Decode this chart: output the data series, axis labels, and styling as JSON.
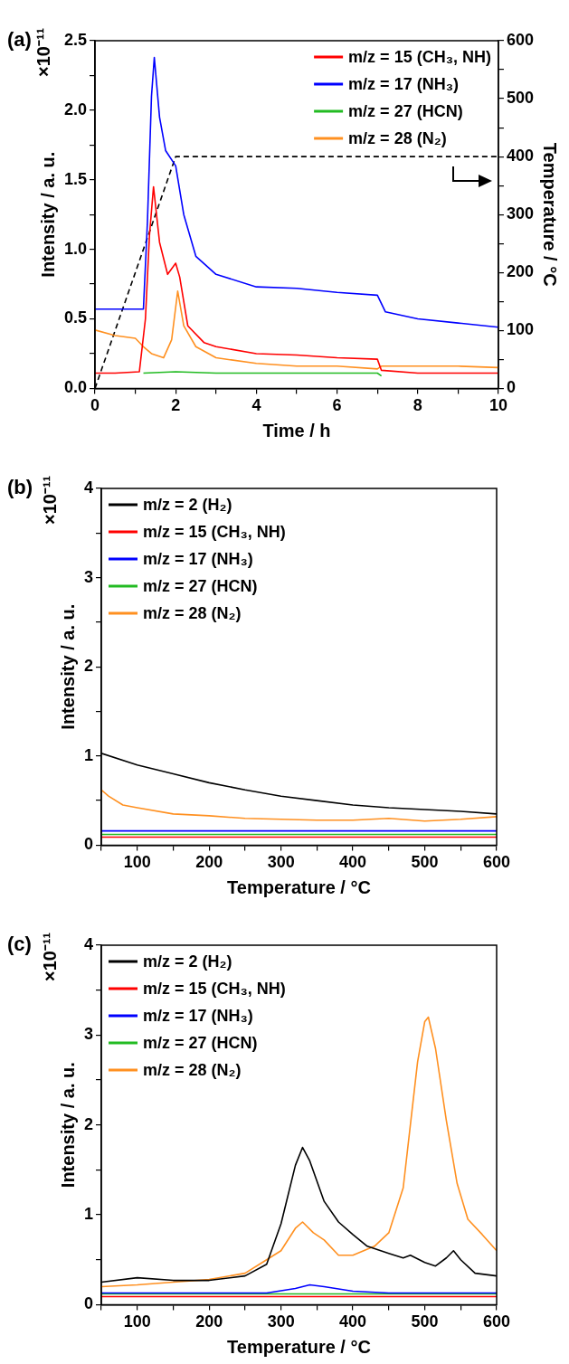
{
  "chart_data": [
    {
      "type": "line",
      "title": "(a)",
      "xlabel": "Time / h",
      "ylabel": "Intensity / a. u.",
      "y2label": "Temperature / °C",
      "annotations": [
        "×10⁻¹¹"
      ],
      "legend": "top right",
      "marker": "none",
      "xlim": [
        0,
        10
      ],
      "xticks": [
        0,
        {
          "value": 1,
          "label": null
        },
        2,
        {
          "value": 3,
          "label": null
        },
        4,
        {
          "value": 5,
          "label": null
        },
        6,
        {
          "value": 7,
          "label": null
        },
        8,
        {
          "value": 9,
          "label": null
        },
        10
      ],
      "ylim": [
        0,
        2.5
      ],
      "yticks": [
        {
          "value": 0,
          "label": "0.0"
        },
        {
          "value": 0.25,
          "label": null
        },
        {
          "value": 0.5,
          "label": "0.5"
        },
        {
          "value": 0.75,
          "label": null
        },
        {
          "value": 1,
          "label": "1.0"
        },
        {
          "value": 1.25,
          "label": null
        },
        {
          "value": 1.5,
          "label": "1.5"
        },
        {
          "value": 1.75,
          "label": null
        },
        {
          "value": 2,
          "label": "2.0"
        },
        {
          "value": 2.25,
          "label": null
        },
        {
          "value": 2.5,
          "label": "2.5"
        }
      ],
      "y2lim": [
        0,
        600
      ],
      "y2ticks": [
        0,
        {
          "value": 50,
          "label": null
        },
        100,
        {
          "value": 150,
          "label": null
        },
        200,
        {
          "value": 250,
          "label": null
        },
        300,
        {
          "value": 350,
          "label": null
        },
        400,
        {
          "value": 450,
          "label": null
        },
        500,
        {
          "value": 550,
          "label": null
        },
        600
      ],
      "series": [
        {
          "name": "m/z = 15 (CH₃, NH)",
          "color": "#ff0000",
          "x": [
            0,
            0.5,
            1.1,
            1.25,
            1.35,
            1.45,
            1.6,
            1.8,
            2.0,
            2.1,
            2.3,
            2.7,
            3,
            4,
            5,
            6,
            7,
            7.1,
            8,
            9,
            10
          ],
          "values": [
            0.11,
            0.11,
            0.12,
            0.5,
            1.1,
            1.45,
            1.05,
            0.82,
            0.9,
            0.8,
            0.45,
            0.33,
            0.3,
            0.25,
            0.24,
            0.22,
            0.21,
            0.13,
            0.11,
            0.11,
            0.11
          ]
        },
        {
          "name": "m/z = 17 (NH₃)",
          "color": "#0000ff",
          "x": [
            0,
            0.5,
            1.2,
            1.3,
            1.4,
            1.47,
            1.6,
            1.75,
            2.0,
            2.2,
            2.5,
            3,
            4,
            5,
            6,
            7,
            7.2,
            8,
            9,
            10
          ],
          "values": [
            0.57,
            0.57,
            0.57,
            1.2,
            2.1,
            2.38,
            1.95,
            1.71,
            1.6,
            1.25,
            0.95,
            0.82,
            0.73,
            0.72,
            0.69,
            0.67,
            0.55,
            0.5,
            0.47,
            0.44
          ]
        },
        {
          "name": "m/z = 27 (HCN)",
          "color": "#22bb22",
          "x": [
            1.2,
            2,
            3,
            4,
            5,
            6,
            7,
            7.1
          ],
          "values": [
            0.11,
            0.12,
            0.11,
            0.11,
            0.11,
            0.11,
            0.11,
            0.09
          ]
        },
        {
          "name": "m/z = 28 (N₂)",
          "color": "#ff9020",
          "x": [
            0,
            0.5,
            1.0,
            1.2,
            1.4,
            1.7,
            1.9,
            2.05,
            2.2,
            2.5,
            3,
            4,
            5,
            6,
            7,
            7.1,
            8,
            9,
            10
          ],
          "values": [
            0.42,
            0.38,
            0.36,
            0.3,
            0.25,
            0.22,
            0.35,
            0.7,
            0.45,
            0.3,
            0.22,
            0.18,
            0.16,
            0.16,
            0.14,
            0.16,
            0.16,
            0.16,
            0.15
          ]
        },
        {
          "color": "#000000",
          "axis": "y2",
          "line_style": "dashed",
          "x": [
            0,
            2,
            10
          ],
          "values": [
            0,
            400,
            400
          ]
        }
      ]
    },
    {
      "type": "line",
      "title": "(b)",
      "xlabel": "Temperature / °C",
      "ylabel": "Intensity / a. u.",
      "annotations": [
        "×10⁻¹¹"
      ],
      "legend": "top left",
      "marker": "none",
      "xlim": [
        50,
        600
      ],
      "xticks": [
        {
          "value": 50,
          "label": null
        },
        100,
        {
          "value": 150,
          "label": null
        },
        200,
        {
          "value": 250,
          "label": null
        },
        300,
        {
          "value": 350,
          "label": null
        },
        400,
        {
          "value": 450,
          "label": null
        },
        500,
        {
          "value": 550,
          "label": null
        },
        600
      ],
      "ylim": [
        0,
        4
      ],
      "yticks": [
        0,
        {
          "value": 0.5,
          "label": null
        },
        1,
        {
          "value": 1.5,
          "label": null
        },
        2,
        {
          "value": 2.5,
          "label": null
        },
        3,
        {
          "value": 3.5,
          "label": null
        },
        4
      ],
      "series": [
        {
          "name": "m/z = 2 (H₂)",
          "color": "#000000",
          "x": [
            50,
            100,
            150,
            200,
            250,
            300,
            350,
            400,
            450,
            500,
            550,
            600
          ],
          "values": [
            1.03,
            0.9,
            0.8,
            0.7,
            0.62,
            0.55,
            0.5,
            0.45,
            0.42,
            0.4,
            0.38,
            0.35
          ]
        },
        {
          "name": "m/z = 15 (CH₃, NH)",
          "color": "#ff0000",
          "x": [
            50,
            200,
            400,
            600
          ],
          "values": [
            0.09,
            0.09,
            0.09,
            0.09
          ]
        },
        {
          "name": "m/z = 17 (NH₃)",
          "color": "#0000ff",
          "x": [
            50,
            200,
            400,
            600
          ],
          "values": [
            0.16,
            0.16,
            0.16,
            0.16
          ]
        },
        {
          "name": "m/z = 27 (HCN)",
          "color": "#22bb22",
          "x": [
            50,
            200,
            400,
            600
          ],
          "values": [
            0.12,
            0.12,
            0.12,
            0.12
          ]
        },
        {
          "name": "m/z = 28 (N₂)",
          "color": "#ff9020",
          "x": [
            50,
            60,
            80,
            100,
            150,
            200,
            250,
            300,
            350,
            400,
            450,
            500,
            550,
            600
          ],
          "values": [
            0.62,
            0.55,
            0.45,
            0.42,
            0.35,
            0.33,
            0.3,
            0.29,
            0.28,
            0.28,
            0.3,
            0.27,
            0.29,
            0.32
          ]
        }
      ]
    },
    {
      "type": "line",
      "title": "(c)",
      "xlabel": "Temperature / °C",
      "ylabel": "Intensity / a. u.",
      "annotations": [
        "×10⁻¹¹"
      ],
      "legend": "top left",
      "marker": "none",
      "xlim": [
        50,
        600
      ],
      "xticks": [
        {
          "value": 50,
          "label": null
        },
        100,
        {
          "value": 150,
          "label": null
        },
        200,
        {
          "value": 250,
          "label": null
        },
        300,
        {
          "value": 350,
          "label": null
        },
        400,
        {
          "value": 450,
          "label": null
        },
        500,
        {
          "value": 550,
          "label": null
        },
        600
      ],
      "ylim": [
        0,
        4
      ],
      "yticks": [
        0,
        {
          "value": 0.5,
          "label": null
        },
        1,
        {
          "value": 1.5,
          "label": null
        },
        2,
        {
          "value": 2.5,
          "label": null
        },
        3,
        {
          "value": 3.5,
          "label": null
        },
        4
      ],
      "series": [
        {
          "name": "m/z = 2 (H₂)",
          "color": "#000000",
          "x": [
            50,
            100,
            150,
            200,
            250,
            280,
            300,
            320,
            330,
            340,
            360,
            380,
            400,
            420,
            450,
            470,
            480,
            500,
            515,
            530,
            540,
            550,
            570,
            600
          ],
          "values": [
            0.25,
            0.3,
            0.27,
            0.27,
            0.32,
            0.45,
            0.9,
            1.55,
            1.75,
            1.6,
            1.15,
            0.92,
            0.78,
            0.65,
            0.57,
            0.52,
            0.55,
            0.47,
            0.43,
            0.52,
            0.6,
            0.5,
            0.35,
            0.32
          ]
        },
        {
          "name": "m/z = 15 (CH₃, NH)",
          "color": "#ff0000",
          "x": [
            50,
            200,
            400,
            600
          ],
          "values": [
            0.09,
            0.09,
            0.09,
            0.09
          ]
        },
        {
          "name": "m/z = 17 (NH₃)",
          "color": "#0000ff",
          "x": [
            50,
            280,
            320,
            340,
            360,
            400,
            450,
            600
          ],
          "values": [
            0.13,
            0.13,
            0.18,
            0.22,
            0.2,
            0.15,
            0.13,
            0.13
          ]
        },
        {
          "name": "m/z = 27 (HCN)",
          "color": "#22bb22",
          "x": [
            50,
            200,
            400,
            600
          ],
          "values": [
            0.12,
            0.12,
            0.12,
            0.12
          ]
        },
        {
          "name": "m/z = 28 (N₂)",
          "color": "#ff9020",
          "x": [
            50,
            100,
            150,
            200,
            250,
            280,
            300,
            320,
            330,
            345,
            360,
            380,
            400,
            430,
            450,
            470,
            480,
            490,
            500,
            505,
            515,
            530,
            545,
            560,
            580,
            600
          ],
          "values": [
            0.2,
            0.22,
            0.25,
            0.28,
            0.35,
            0.5,
            0.6,
            0.85,
            0.92,
            0.8,
            0.72,
            0.55,
            0.55,
            0.65,
            0.8,
            1.3,
            2.0,
            2.7,
            3.15,
            3.2,
            2.85,
            2.05,
            1.35,
            0.95,
            0.78,
            0.6
          ]
        }
      ]
    }
  ]
}
